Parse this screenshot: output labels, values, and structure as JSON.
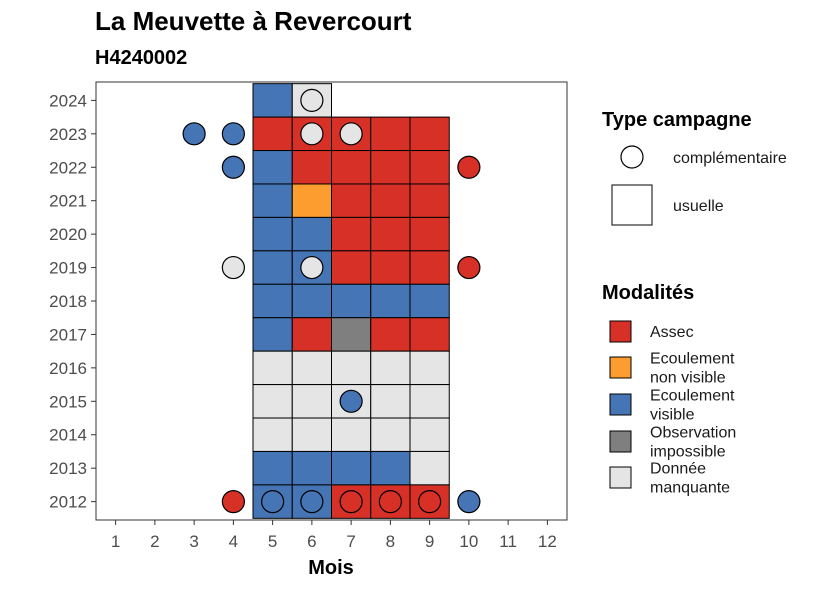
{
  "chart_data": {
    "type": "heatmap",
    "title": "La Meuvette à Revercourt",
    "subtitle": "H4240002",
    "xlabel": "Mois",
    "ylabel": "",
    "x_ticks": [
      "1",
      "2",
      "3",
      "4",
      "5",
      "6",
      "7",
      "8",
      "9",
      "10",
      "11",
      "12"
    ],
    "y_ticks": [
      "2012",
      "2013",
      "2014",
      "2015",
      "2016",
      "2017",
      "2018",
      "2019",
      "2020",
      "2021",
      "2022",
      "2023",
      "2024"
    ],
    "xlim": [
      0.5,
      12.5
    ],
    "ylim": [
      2011.45,
      2024.55
    ],
    "grid": false,
    "colors": {
      "Assec": "#d73027",
      "Ecoulement non visible": "#fd9d30",
      "Ecoulement visible": "#4575b4",
      "Observation impossible": "#7f7f7f",
      "Donnée manquante": "#e5e5e5"
    },
    "legend_type": {
      "title": "Type campagne",
      "placement": "right",
      "entries": [
        {
          "key": "complementaire",
          "label": "complémentaire",
          "shape": "circle"
        },
        {
          "key": "usuelle",
          "label": "usuelle",
          "shape": "square"
        }
      ]
    },
    "legend_modalites": {
      "title": "Modalités",
      "placement": "right",
      "entries": [
        {
          "key": "Assec",
          "lines": [
            "Assec"
          ]
        },
        {
          "key": "Ecoulement non visible",
          "lines": [
            "Ecoulement",
            "non visible"
          ]
        },
        {
          "key": "Ecoulement visible",
          "lines": [
            "Ecoulement",
            "visible"
          ]
        },
        {
          "key": "Observation impossible",
          "lines": [
            "Observation",
            "impossible"
          ]
        },
        {
          "key": "Donnée manquante",
          "lines": [
            "Donnée",
            "manquante"
          ]
        }
      ]
    },
    "usuelle": [
      {
        "year": 2024,
        "month": 5,
        "modalite": "Ecoulement visible"
      },
      {
        "year": 2024,
        "month": 6,
        "modalite": "Donnée manquante"
      },
      {
        "year": 2023,
        "month": 5,
        "modalite": "Assec"
      },
      {
        "year": 2023,
        "month": 6,
        "modalite": "Assec"
      },
      {
        "year": 2023,
        "month": 7,
        "modalite": "Assec"
      },
      {
        "year": 2023,
        "month": 8,
        "modalite": "Assec"
      },
      {
        "year": 2023,
        "month": 9,
        "modalite": "Assec"
      },
      {
        "year": 2022,
        "month": 5,
        "modalite": "Ecoulement visible"
      },
      {
        "year": 2022,
        "month": 6,
        "modalite": "Assec"
      },
      {
        "year": 2022,
        "month": 7,
        "modalite": "Assec"
      },
      {
        "year": 2022,
        "month": 8,
        "modalite": "Assec"
      },
      {
        "year": 2022,
        "month": 9,
        "modalite": "Assec"
      },
      {
        "year": 2021,
        "month": 5,
        "modalite": "Ecoulement visible"
      },
      {
        "year": 2021,
        "month": 6,
        "modalite": "Ecoulement non visible"
      },
      {
        "year": 2021,
        "month": 7,
        "modalite": "Assec"
      },
      {
        "year": 2021,
        "month": 8,
        "modalite": "Assec"
      },
      {
        "year": 2021,
        "month": 9,
        "modalite": "Assec"
      },
      {
        "year": 2020,
        "month": 5,
        "modalite": "Ecoulement visible"
      },
      {
        "year": 2020,
        "month": 6,
        "modalite": "Ecoulement visible"
      },
      {
        "year": 2020,
        "month": 7,
        "modalite": "Assec"
      },
      {
        "year": 2020,
        "month": 8,
        "modalite": "Assec"
      },
      {
        "year": 2020,
        "month": 9,
        "modalite": "Assec"
      },
      {
        "year": 2019,
        "month": 5,
        "modalite": "Ecoulement visible"
      },
      {
        "year": 2019,
        "month": 6,
        "modalite": "Ecoulement visible"
      },
      {
        "year": 2019,
        "month": 7,
        "modalite": "Assec"
      },
      {
        "year": 2019,
        "month": 8,
        "modalite": "Assec"
      },
      {
        "year": 2019,
        "month": 9,
        "modalite": "Assec"
      },
      {
        "year": 2018,
        "month": 5,
        "modalite": "Ecoulement visible"
      },
      {
        "year": 2018,
        "month": 6,
        "modalite": "Ecoulement visible"
      },
      {
        "year": 2018,
        "month": 7,
        "modalite": "Ecoulement visible"
      },
      {
        "year": 2018,
        "month": 8,
        "modalite": "Ecoulement visible"
      },
      {
        "year": 2018,
        "month": 9,
        "modalite": "Ecoulement visible"
      },
      {
        "year": 2017,
        "month": 5,
        "modalite": "Ecoulement visible"
      },
      {
        "year": 2017,
        "month": 6,
        "modalite": "Assec"
      },
      {
        "year": 2017,
        "month": 7,
        "modalite": "Observation impossible"
      },
      {
        "year": 2017,
        "month": 8,
        "modalite": "Assec"
      },
      {
        "year": 2017,
        "month": 9,
        "modalite": "Assec"
      },
      {
        "year": 2016,
        "month": 5,
        "modalite": "Donnée manquante"
      },
      {
        "year": 2016,
        "month": 6,
        "modalite": "Donnée manquante"
      },
      {
        "year": 2016,
        "month": 7,
        "modalite": "Donnée manquante"
      },
      {
        "year": 2016,
        "month": 8,
        "modalite": "Donnée manquante"
      },
      {
        "year": 2016,
        "month": 9,
        "modalite": "Donnée manquante"
      },
      {
        "year": 2015,
        "month": 5,
        "modalite": "Donnée manquante"
      },
      {
        "year": 2015,
        "month": 6,
        "modalite": "Donnée manquante"
      },
      {
        "year": 2015,
        "month": 7,
        "modalite": "Donnée manquante"
      },
      {
        "year": 2015,
        "month": 8,
        "modalite": "Donnée manquante"
      },
      {
        "year": 2015,
        "month": 9,
        "modalite": "Donnée manquante"
      },
      {
        "year": 2014,
        "month": 5,
        "modalite": "Donnée manquante"
      },
      {
        "year": 2014,
        "month": 6,
        "modalite": "Donnée manquante"
      },
      {
        "year": 2014,
        "month": 7,
        "modalite": "Donnée manquante"
      },
      {
        "year": 2014,
        "month": 8,
        "modalite": "Donnée manquante"
      },
      {
        "year": 2014,
        "month": 9,
        "modalite": "Donnée manquante"
      },
      {
        "year": 2013,
        "month": 5,
        "modalite": "Ecoulement visible"
      },
      {
        "year": 2013,
        "month": 6,
        "modalite": "Ecoulement visible"
      },
      {
        "year": 2013,
        "month": 7,
        "modalite": "Ecoulement visible"
      },
      {
        "year": 2013,
        "month": 8,
        "modalite": "Ecoulement visible"
      },
      {
        "year": 2013,
        "month": 9,
        "modalite": "Donnée manquante"
      },
      {
        "year": 2012,
        "month": 5,
        "modalite": "Ecoulement visible"
      },
      {
        "year": 2012,
        "month": 6,
        "modalite": "Ecoulement visible"
      },
      {
        "year": 2012,
        "month": 7,
        "modalite": "Assec"
      },
      {
        "year": 2012,
        "month": 8,
        "modalite": "Assec"
      },
      {
        "year": 2012,
        "month": 9,
        "modalite": "Assec"
      }
    ],
    "complementaire": [
      {
        "year": 2024,
        "month": 6,
        "modalite": "Donnée manquante"
      },
      {
        "year": 2023,
        "month": 3,
        "modalite": "Ecoulement visible"
      },
      {
        "year": 2023,
        "month": 4,
        "modalite": "Ecoulement visible"
      },
      {
        "year": 2023,
        "month": 6,
        "modalite": "Donnée manquante"
      },
      {
        "year": 2023,
        "month": 7,
        "modalite": "Donnée manquante"
      },
      {
        "year": 2022,
        "month": 4,
        "modalite": "Ecoulement visible"
      },
      {
        "year": 2022,
        "month": 10,
        "modalite": "Assec"
      },
      {
        "year": 2019,
        "month": 4,
        "modalite": "Donnée manquante"
      },
      {
        "year": 2019,
        "month": 6,
        "modalite": "Donnée manquante"
      },
      {
        "year": 2019,
        "month": 10,
        "modalite": "Assec"
      },
      {
        "year": 2015,
        "month": 7,
        "modalite": "Ecoulement visible"
      },
      {
        "year": 2012,
        "month": 4,
        "modalite": "Assec"
      },
      {
        "year": 2012,
        "month": 5,
        "modalite": "Ecoulement visible"
      },
      {
        "year": 2012,
        "month": 6,
        "modalite": "Ecoulement visible"
      },
      {
        "year": 2012,
        "month": 7,
        "modalite": "Assec"
      },
      {
        "year": 2012,
        "month": 8,
        "modalite": "Assec"
      },
      {
        "year": 2012,
        "month": 9,
        "modalite": "Assec"
      },
      {
        "year": 2012,
        "month": 10,
        "modalite": "Ecoulement visible"
      }
    ]
  }
}
